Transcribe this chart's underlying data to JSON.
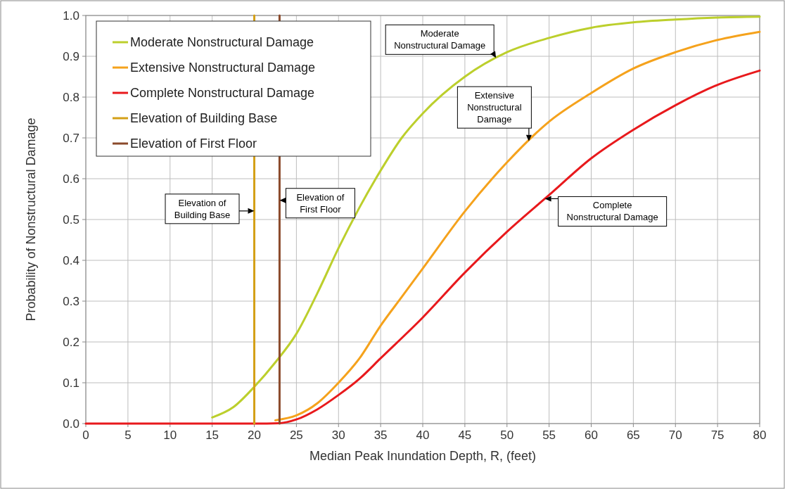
{
  "chart_data": {
    "type": "line",
    "xlabel": "Median Peak Inundation Depth, R, (feet)",
    "ylabel": "Probability of Nonstructural Damage",
    "xlim": [
      0,
      80
    ],
    "xticks": [
      0,
      5,
      10,
      15,
      20,
      25,
      30,
      35,
      40,
      45,
      50,
      55,
      60,
      65,
      70,
      75,
      80
    ],
    "ylim": [
      0,
      1
    ],
    "yticks": [
      {
        "value": 0,
        "label": "0.0"
      },
      {
        "value": 0.1,
        "label": "0.1"
      },
      {
        "value": 0.2,
        "label": "0.2"
      },
      {
        "value": 0.3,
        "label": "0.3"
      },
      {
        "value": 0.4,
        "label": "0.4"
      },
      {
        "value": 0.5,
        "label": "0.5"
      },
      {
        "value": 0.6,
        "label": "0.6"
      },
      {
        "value": 0.7,
        "label": "0.7"
      },
      {
        "value": 0.8,
        "label": "0.8"
      },
      {
        "value": 0.9,
        "label": "0.9"
      },
      {
        "value": 1,
        "label": "1.0"
      }
    ],
    "grid": true,
    "legend": "top left",
    "marker": "none",
    "line_style": "solid",
    "series": [
      {
        "name": "Moderate Nonstructural Damage",
        "color": "#bccf2c",
        "x": [
          15,
          17.5,
          20,
          22.5,
          25,
          27.5,
          30,
          32.5,
          35,
          37.5,
          40,
          45,
          50,
          55,
          60,
          65,
          70,
          75,
          80
        ],
        "values": [
          0.015,
          0.04,
          0.09,
          0.15,
          0.22,
          0.32,
          0.43,
          0.53,
          0.62,
          0.7,
          0.76,
          0.85,
          0.91,
          0.945,
          0.97,
          0.983,
          0.99,
          0.995,
          0.997
        ]
      },
      {
        "name": "Extensive Nonstructural Damage",
        "color": "#f5a21c",
        "x": [
          22.5,
          25,
          27.5,
          30,
          32.5,
          35,
          37.5,
          40,
          45,
          50,
          55,
          60,
          65,
          70,
          75,
          80
        ],
        "values": [
          0.008,
          0.02,
          0.05,
          0.1,
          0.16,
          0.24,
          0.31,
          0.38,
          0.52,
          0.64,
          0.74,
          0.81,
          0.87,
          0.91,
          0.94,
          0.96
        ]
      },
      {
        "name": "Complete Nonstructural Damage",
        "color": "#e8191c",
        "x": [
          0,
          5,
          10,
          15,
          20,
          23,
          25,
          27.5,
          30,
          32.5,
          35,
          40,
          45,
          50,
          55,
          60,
          65,
          70,
          75,
          80
        ],
        "values": [
          0,
          0,
          0,
          0,
          0,
          0.001,
          0.01,
          0.035,
          0.07,
          0.11,
          0.16,
          0.26,
          0.37,
          0.47,
          0.56,
          0.65,
          0.72,
          0.78,
          0.83,
          0.865
        ]
      },
      {
        "name": "Elevation of Building Base",
        "color": "#d4a017",
        "x": [
          20,
          20
        ],
        "values": [
          0,
          1
        ]
      },
      {
        "name": "Elevation of First Floor",
        "color": "#8b4a2b",
        "x": [
          23,
          23
        ],
        "values": [
          0,
          1
        ]
      }
    ],
    "annotations": [
      {
        "text": "Moderate\nNonstructural Damage",
        "x": 48.7,
        "y": 0.896
      },
      {
        "text": "Extensive\nNonstructural\nDamage",
        "x": 52.6,
        "y": 0.692
      },
      {
        "text": "Complete\nNonstructural Damage",
        "x": 54.5,
        "y": 0.551
      },
      {
        "text": "Elevation of\nBuilding Base",
        "x": 20,
        "y": 0.521
      },
      {
        "text": "Elevation of\nFirst Floor",
        "x": 23,
        "y": 0.547
      }
    ]
  }
}
